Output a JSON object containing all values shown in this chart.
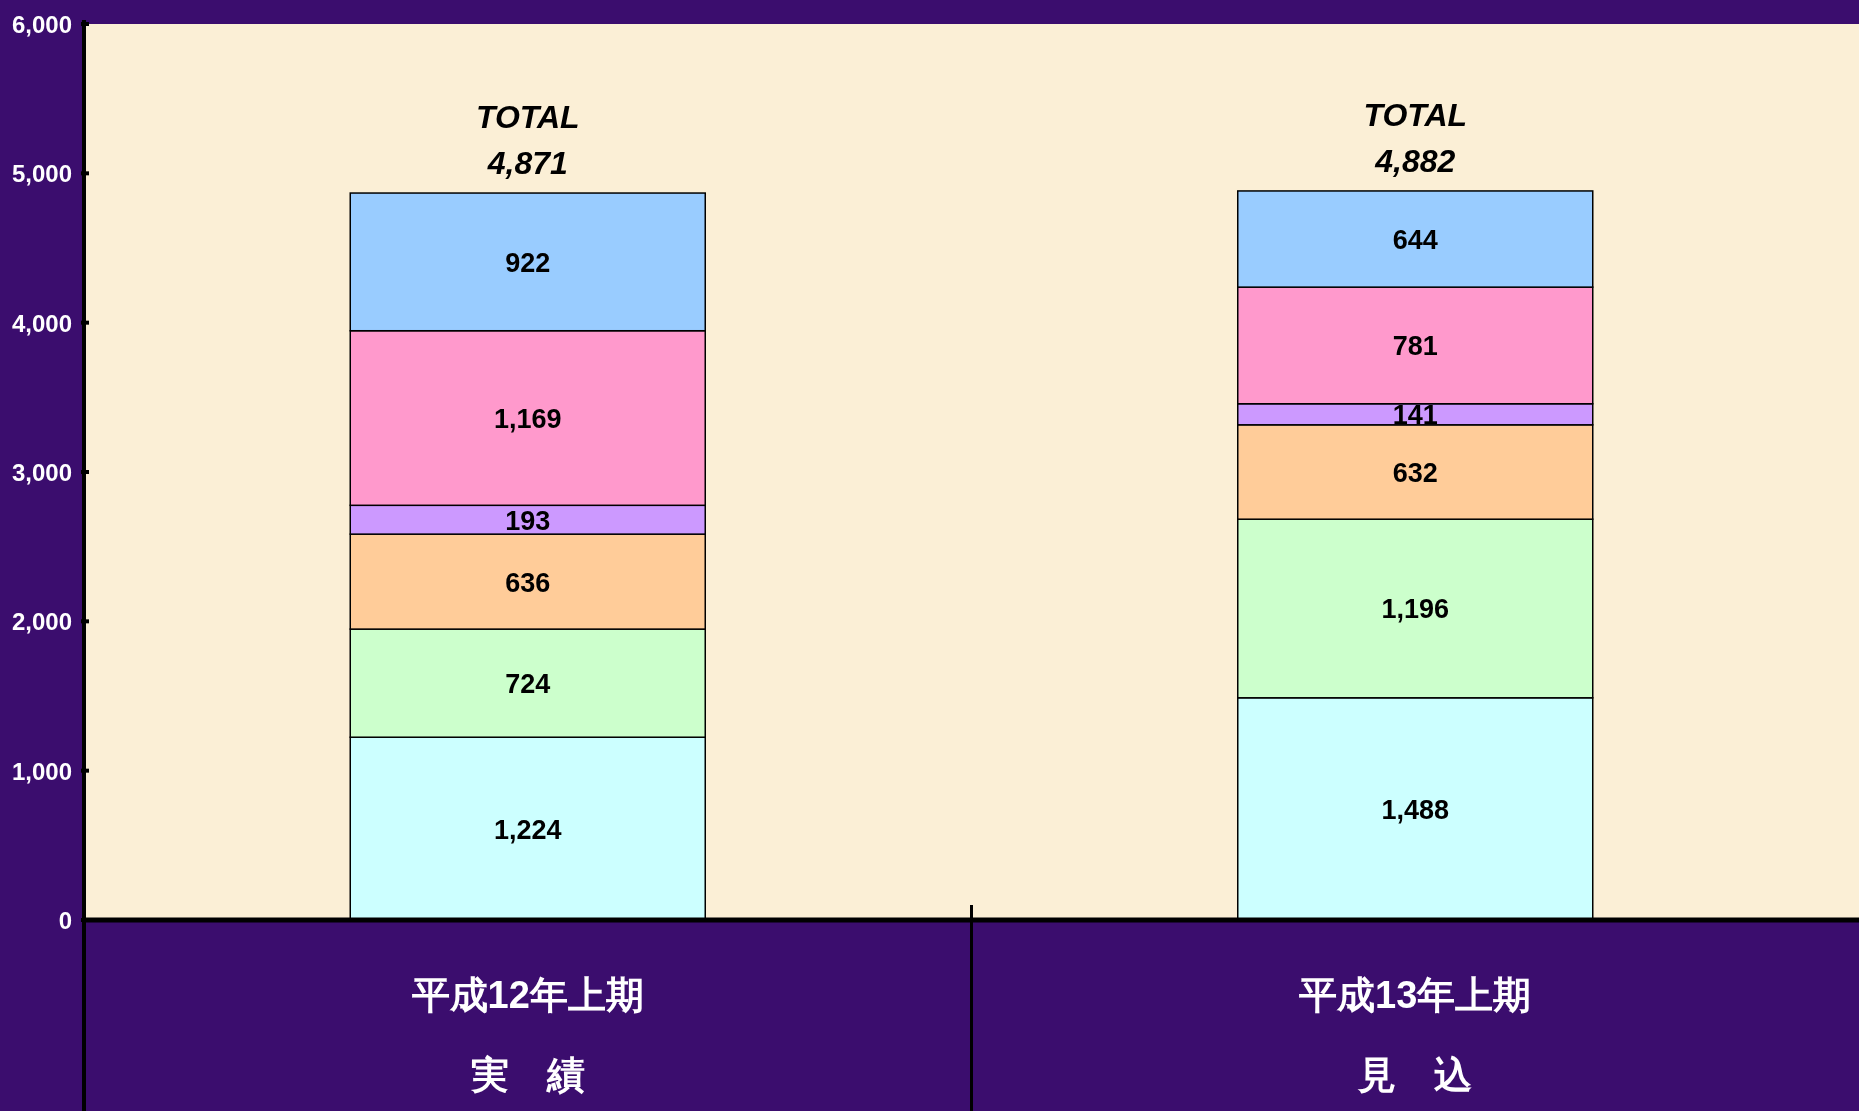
{
  "chart_data": {
    "type": "bar",
    "stacked": true,
    "categories": [
      "平成12年上期実　績",
      "平成13年上期見　込"
    ],
    "series": [
      {
        "color": "#ccffff",
        "values": [
          1224,
          1488
        ],
        "value_labels": [
          "1,224",
          "1,488"
        ]
      },
      {
        "color": "#ccffcc",
        "values": [
          724,
          1196
        ],
        "value_labels": [
          "724",
          "1,196"
        ]
      },
      {
        "color": "#ffcc99",
        "values": [
          636,
          632
        ],
        "value_labels": [
          "636",
          "632"
        ]
      },
      {
        "color": "#cc99ff",
        "values": [
          193,
          141
        ],
        "value_labels": [
          "193",
          "141"
        ]
      },
      {
        "color": "#ff99cc",
        "values": [
          1169,
          781
        ],
        "value_labels": [
          "1,169",
          "781"
        ]
      },
      {
        "color": "#99ccff",
        "values": [
          922,
          644
        ],
        "value_labels": [
          "922",
          "644"
        ]
      }
    ],
    "ylim": [
      0,
      6000
    ],
    "yticks": [
      {
        "value": 0,
        "label": "0"
      },
      {
        "value": 1000,
        "label": "1,000"
      },
      {
        "value": 2000,
        "label": "2,000"
      },
      {
        "value": 3000,
        "label": "3,000"
      },
      {
        "value": 4000,
        "label": "4,000"
      },
      {
        "value": 5000,
        "label": "5,000"
      },
      {
        "value": 6000,
        "label": "6,000"
      }
    ],
    "grid": false,
    "totals": [
      "TOTAL\n4,871",
      "TOTAL\n4,882"
    ]
  }
}
